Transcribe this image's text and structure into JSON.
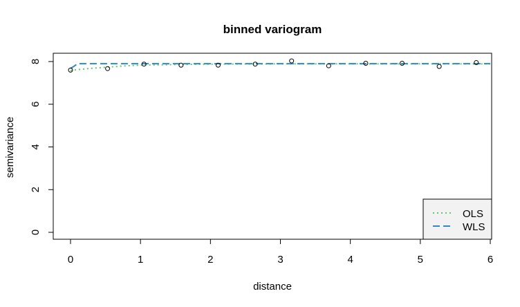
{
  "chart_data": {
    "type": "scatter",
    "title": "binned variogram",
    "xlabel": "distance",
    "ylabel": "semivariance",
    "xlim": [
      0,
      6
    ],
    "ylim": [
      0,
      8
    ],
    "xticks": [
      "0",
      "1",
      "2",
      "3",
      "4",
      "5",
      "6"
    ],
    "yticks": [
      "0",
      "2",
      "4",
      "6",
      "8"
    ],
    "grid": false,
    "legend_position": "bottom-right",
    "points": {
      "x": [
        0.0,
        0.53,
        1.05,
        1.58,
        2.11,
        2.64,
        3.16,
        3.69,
        4.22,
        4.74,
        5.27,
        5.8
      ],
      "y": [
        7.6,
        7.67,
        7.88,
        7.83,
        7.83,
        7.88,
        8.03,
        7.8,
        7.92,
        7.92,
        7.77,
        7.95
      ]
    },
    "series": [
      {
        "name": "OLS",
        "style": "dotted",
        "color": "#5cc863",
        "x": [
          0.0,
          0.1,
          0.25,
          0.5,
          0.75,
          1.0,
          1.5,
          2.0,
          3.0,
          4.0,
          5.0,
          6.0
        ],
        "y": [
          7.58,
          7.62,
          7.67,
          7.73,
          7.79,
          7.83,
          7.86,
          7.88,
          7.89,
          7.89,
          7.89,
          7.89
        ]
      },
      {
        "name": "WLS",
        "style": "dashed",
        "color": "#2e89c2",
        "x": [
          0.0,
          0.05,
          0.1,
          1.0,
          2.0,
          3.0,
          4.0,
          5.0,
          6.0
        ],
        "y": [
          7.68,
          7.78,
          7.9,
          7.9,
          7.9,
          7.9,
          7.9,
          7.9,
          7.9
        ]
      }
    ]
  }
}
